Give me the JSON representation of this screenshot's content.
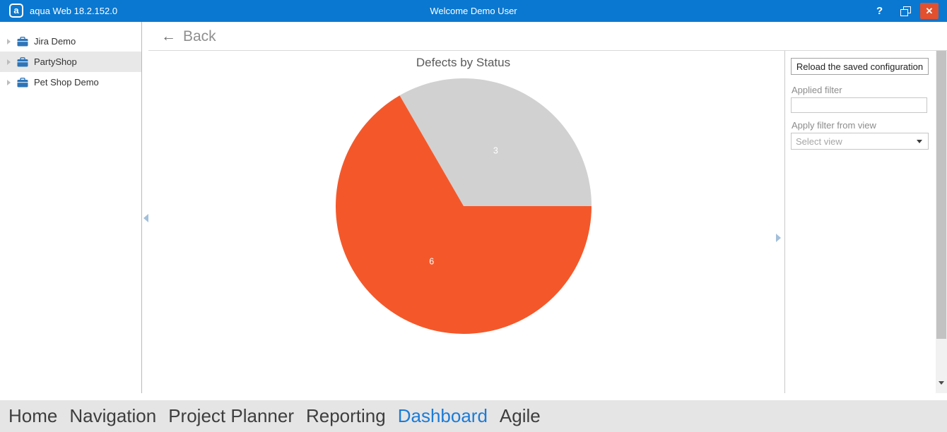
{
  "titlebar": {
    "app_title": "aqua Web 18.2.152.0",
    "welcome_text": "Welcome Demo User",
    "logo_glyph": "a",
    "help_glyph": "?",
    "close_glyph": "✕",
    "accent_color": "#0a78d0",
    "close_color": "#e2502e"
  },
  "sidebar": {
    "items": [
      {
        "label": "Jira Demo",
        "selected": false
      },
      {
        "label": "PartyShop",
        "selected": true
      },
      {
        "label": "Pet Shop Demo",
        "selected": false
      }
    ],
    "briefcase_color": "#2e74b8"
  },
  "main": {
    "back_arrow": "←",
    "back_label": "Back"
  },
  "chart_data": {
    "type": "pie",
    "title": "Defects by Status",
    "values": [
      3,
      6
    ],
    "data_labels": [
      "3",
      "6"
    ],
    "slice_colors": [
      "#d1d1d1",
      "#f4582a"
    ],
    "start_angle_deg": 0,
    "direction": "counterclockwise",
    "legend": "none",
    "label_color": "#ffffff"
  },
  "right_panel": {
    "reload_button_label": "Reload the saved configuration",
    "applied_filter_label": "Applied filter",
    "applied_filter_value": "",
    "apply_filter_from_view_label": "Apply filter from view",
    "view_select_placeholder": "Select view"
  },
  "bottom_nav": {
    "items": [
      "Home",
      "Navigation",
      "Project Planner",
      "Reporting",
      "Dashboard",
      "Agile"
    ],
    "active": "Dashboard",
    "active_color": "#1c7cd6"
  }
}
